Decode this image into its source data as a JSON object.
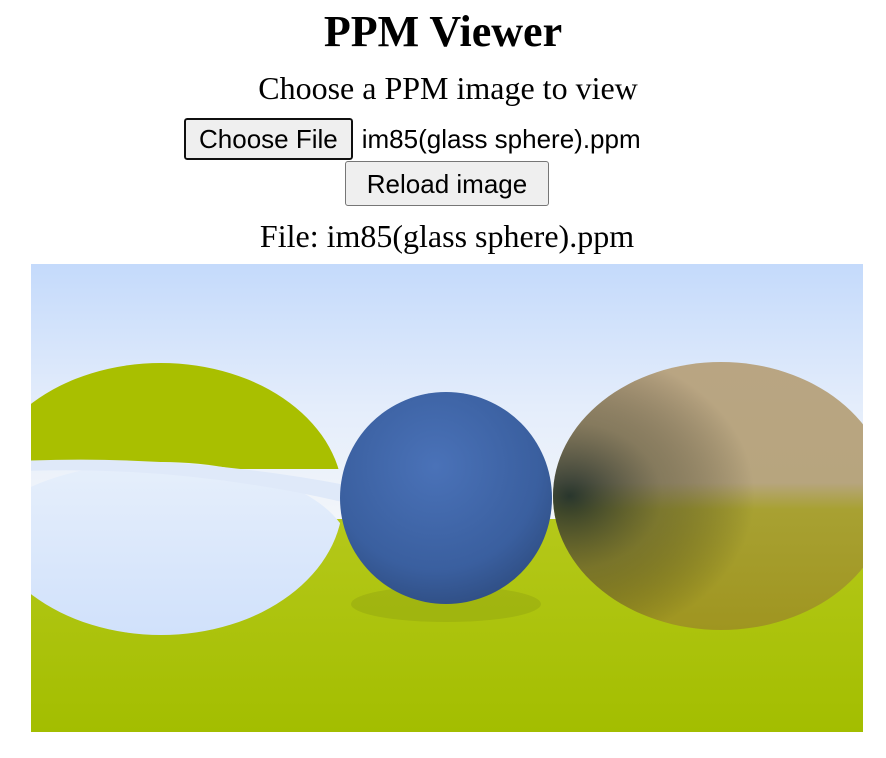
{
  "page": {
    "title": "PPM Viewer",
    "subtitle": "Choose a PPM image to view"
  },
  "file_input": {
    "button_label": "Choose File",
    "selected_file": "im85(glass sphere).ppm"
  },
  "reload_button": {
    "label": "Reload image"
  },
  "file_display": {
    "text": "File: im85(glass sphere).ppm"
  },
  "rendered_image": {
    "description_icon": "rendered-scene-image",
    "colors": {
      "sky_top": "#c6dcfb",
      "sky_bottom": "#eef3fb",
      "ground": "#a8c000",
      "left_sphere": "#a9bf00",
      "center_sphere": "#3d63a8",
      "right_sphere": "#b19a62"
    }
  }
}
